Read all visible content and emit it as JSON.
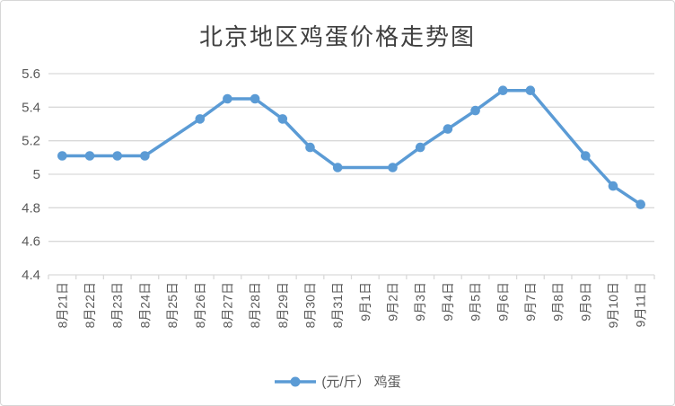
{
  "chart_data": {
    "type": "line",
    "title": "北京地区鸡蛋价格走势图",
    "categories": [
      "8月21日",
      "8月22日",
      "8月23日",
      "8月24日",
      "8月25日",
      "8月26日",
      "8月27日",
      "8月28日",
      "8月29日",
      "8月30日",
      "8月31日",
      "9月1日",
      "9月2日",
      "9月3日",
      "9月4日",
      "9月5日",
      "9月6日",
      "9月7日",
      "9月8日",
      "9月9日",
      "9月10日",
      "9月11日"
    ],
    "series": [
      {
        "name": "(元/斤） 鸡蛋",
        "values": [
          5.11,
          5.11,
          5.11,
          5.11,
          null,
          5.33,
          5.45,
          5.45,
          5.33,
          5.16,
          5.04,
          null,
          5.04,
          5.16,
          5.27,
          5.38,
          5.5,
          5.5,
          null,
          5.11,
          4.93,
          4.82
        ]
      }
    ],
    "xlabel": "",
    "ylabel": "",
    "ylim": [
      4.4,
      5.6
    ],
    "yticks": [
      4.4,
      4.6,
      4.8,
      5.0,
      5.2,
      5.4,
      5.6
    ],
    "ytick_labels": [
      "4.4",
      "4.6",
      "4.8",
      "5",
      "5.2",
      "5.4",
      "5.6"
    ],
    "grid": true,
    "legend_position": "bottom",
    "line_color": "#5b9bd5",
    "marker": "circle",
    "gridline_color": "#d9d9d9",
    "axis_text_color": "#595959",
    "title_color": "#3f3f3f"
  }
}
